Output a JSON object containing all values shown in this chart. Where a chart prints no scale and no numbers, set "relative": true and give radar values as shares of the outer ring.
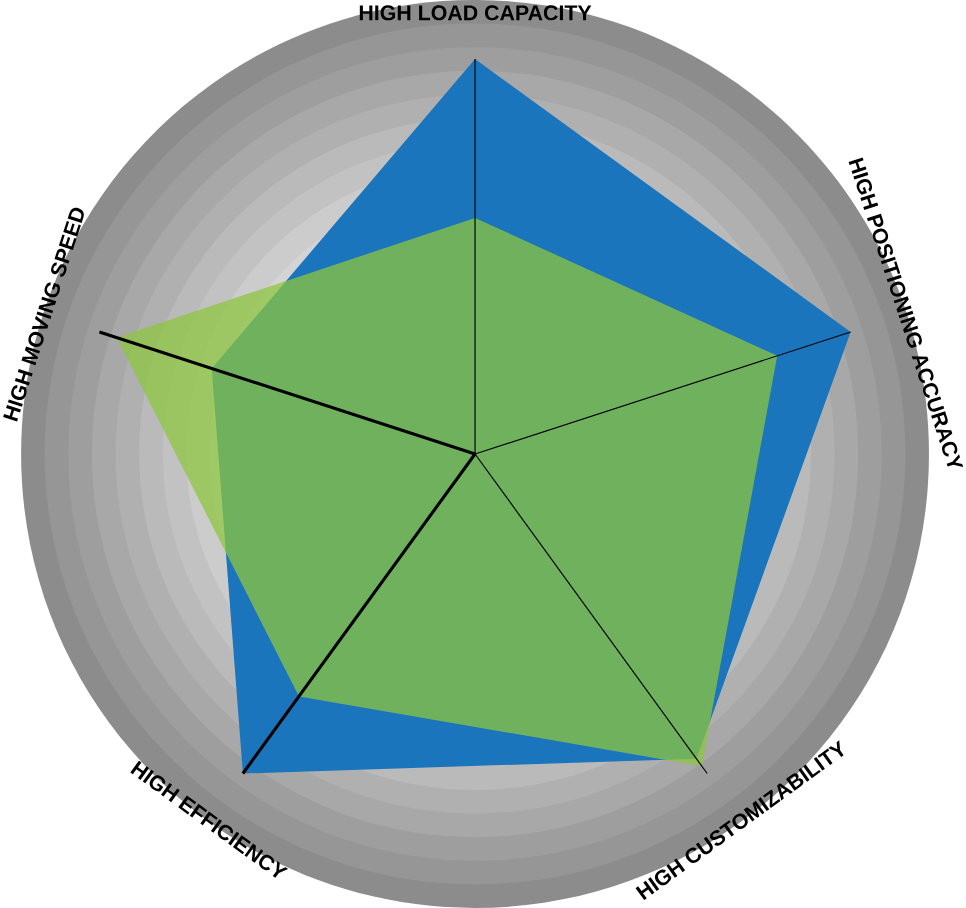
{
  "chart_data": {
    "type": "radar",
    "relative": true,
    "categories": [
      "HIGH LOAD CAPACITY",
      "HIGH POSITIONING ACCURACY",
      "HIGH CUSTOMIZABILITY",
      "HIGH EFFICIENCY",
      "HIGH MOVING SPEED"
    ],
    "series": [
      {
        "color": "#1a75bc",
        "values": [
          0.87,
          0.87,
          0.83,
          0.87,
          0.61
        ]
      },
      {
        "color": "#8dc63f",
        "values": [
          0.52,
          0.7,
          0.85,
          0.66,
          0.83
        ]
      }
    ]
  }
}
